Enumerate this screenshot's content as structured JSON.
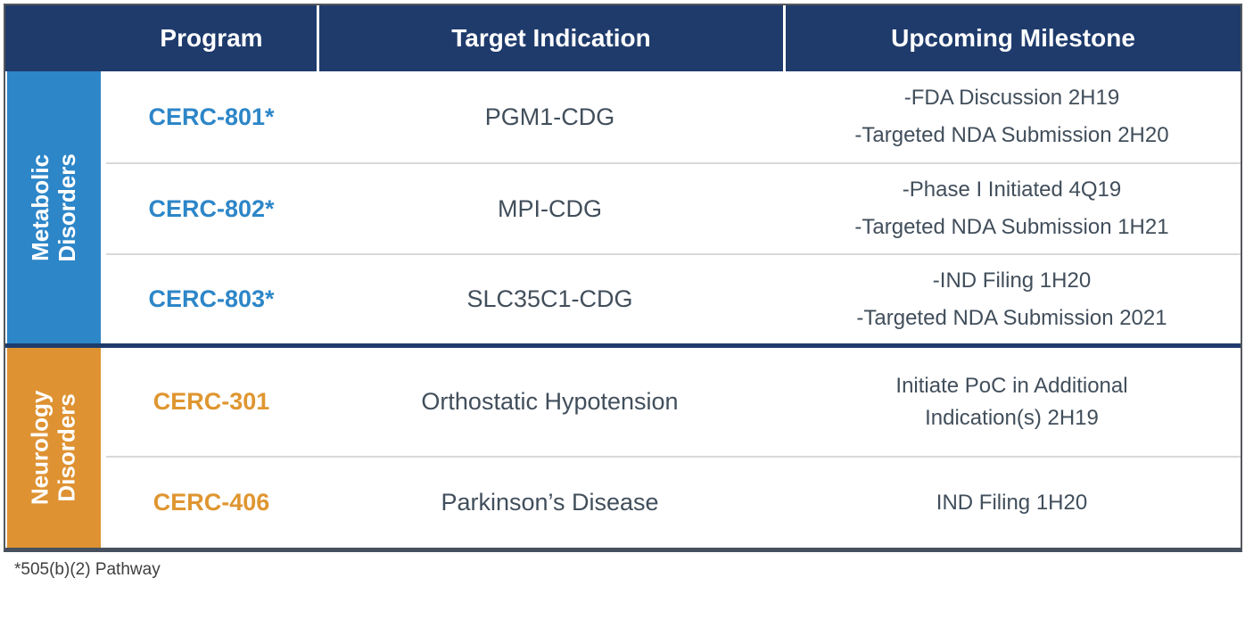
{
  "colors": {
    "navy": "#1f3b6c",
    "blue": "#2d86c8",
    "orange": "#de9232",
    "orange-text": "#df9630",
    "slate": "#414e5b"
  },
  "table": {
    "headers": {
      "program": "Program",
      "target_indication": "Target Indication",
      "upcoming_milestone": "Upcoming Milestone"
    },
    "sections": [
      {
        "label_line1": "Metabolic",
        "label_line2": "Disorders",
        "color": "#2d86c8"
      },
      {
        "label_line1": "Neurology",
        "label_line2": "Disorders",
        "color": "#de9232"
      }
    ],
    "rows": [
      {
        "section": "Metabolic Disorders",
        "program": "CERC-801*",
        "indication": "PGM1-CDG",
        "milestone_lines": [
          "-FDA Discussion 2H19",
          "-Targeted NDA Submission 2H20"
        ]
      },
      {
        "section": "Metabolic Disorders",
        "program": "CERC-802*",
        "indication": "MPI-CDG",
        "milestone_lines": [
          "-Phase I Initiated 4Q19",
          "-Targeted NDA Submission 1H21"
        ]
      },
      {
        "section": "Metabolic Disorders",
        "program": "CERC-803*",
        "indication": "SLC35C1-CDG",
        "milestone_lines": [
          "-IND Filing 1H20",
          "-Targeted NDA Submission 2021"
        ]
      },
      {
        "section": "Neurology Disorders",
        "program": "CERC-301",
        "indication": "Orthostatic Hypotension",
        "milestone_lines": [
          "Initiate PoC in Additional",
          "Indication(s) 2H19"
        ]
      },
      {
        "section": "Neurology Disorders",
        "program": "CERC-406",
        "indication": "Parkinson’s Disease",
        "milestone_lines": [
          "IND Filing 1H20"
        ]
      }
    ]
  },
  "footnote": "*505(b)(2) Pathway"
}
